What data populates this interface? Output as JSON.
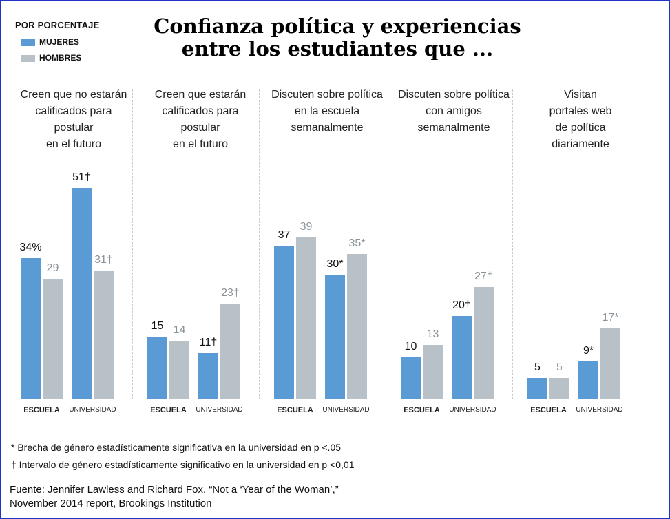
{
  "title_line1": "Confianza política y experiencias",
  "title_line2": "entre los estudiantes que ...",
  "legend": {
    "title": "POR PORCENTAJE",
    "items": [
      {
        "label": "MUJERES",
        "color": "#5b9bd5"
      },
      {
        "label": "HOMBRES",
        "color": "#b9c1c8"
      }
    ]
  },
  "chart_data": {
    "type": "bar",
    "ylim": [
      0,
      52
    ],
    "colors": {
      "mujeres": "#5b9bd5",
      "hombres": "#b9c1c8"
    },
    "groups": [
      {
        "title": "Creen que no estarán calificados para postular en el futuro",
        "title_lines": [
          "Creen que no estarán",
          "calificados para",
          "postular",
          "en el futuro"
        ],
        "categories": [
          "ESCUELA",
          "UNIVERSIDAD"
        ],
        "mujeres": [
          34,
          51
        ],
        "hombres": [
          29,
          31
        ],
        "labels_mujeres": [
          "34%",
          "51†"
        ],
        "labels_hombres": [
          "29",
          "31†"
        ]
      },
      {
        "title": "Creen que estarán calificados para postular en el futuro",
        "title_lines": [
          "Creen que estarán",
          "calificados para",
          "postular",
          "en el futuro"
        ],
        "categories": [
          "ESCUELA",
          "UNIVERSIDAD"
        ],
        "mujeres": [
          15,
          11
        ],
        "hombres": [
          14,
          23
        ],
        "labels_mujeres": [
          "15",
          "11†"
        ],
        "labels_hombres": [
          "14",
          "23†"
        ]
      },
      {
        "title": "Discuten sobre política en la escuela semanalmente",
        "title_lines": [
          "Discuten sobre política",
          "en la escuela",
          "semanalmente"
        ],
        "categories": [
          "ESCUELA",
          "UNIVERSIDAD"
        ],
        "mujeres": [
          37,
          30
        ],
        "hombres": [
          39,
          35
        ],
        "labels_mujeres": [
          "37",
          "30*"
        ],
        "labels_hombres": [
          "39",
          "35*"
        ]
      },
      {
        "title": "Discuten sobre política con amigos semanalmente",
        "title_lines": [
          "Discuten sobre política",
          "con amigos",
          "semanalmente"
        ],
        "categories": [
          "ESCUELA",
          "UNIVERSIDAD"
        ],
        "mujeres": [
          10,
          20
        ],
        "hombres": [
          13,
          27
        ],
        "labels_mujeres": [
          "10",
          "20†"
        ],
        "labels_hombres": [
          "13",
          "27†"
        ]
      },
      {
        "title": "Visitan portales web de política diariamente",
        "title_lines": [
          "Visitan",
          "portales web",
          "de política",
          "diariamente"
        ],
        "categories": [
          "ESCUELA",
          "UNIVERSIDAD"
        ],
        "mujeres": [
          5,
          9
        ],
        "hombres": [
          5,
          17
        ],
        "labels_mujeres": [
          "5",
          "9*"
        ],
        "labels_hombres": [
          "5",
          "17*"
        ]
      }
    ]
  },
  "footnotes": {
    "star": "* Brecha de género estadísticamente significativa en la universidad en p <.05",
    "dagger": "† Intervalo de género estadísticamente significativo en la universidad en p <0,01"
  },
  "source_line1": "Fuente:  Jennifer Lawless and Richard Fox, “Not a ‘Year of the Woman’,”",
  "source_line2": "November 2014 report, Brookings Institution"
}
